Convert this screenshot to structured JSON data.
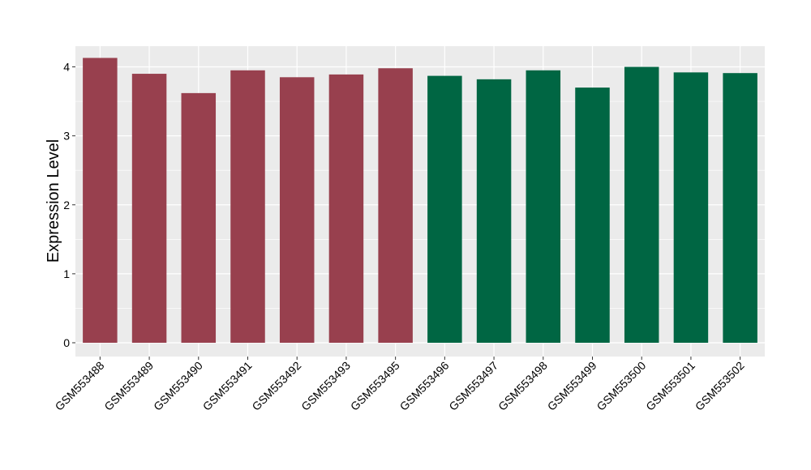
{
  "chart_data": {
    "type": "bar",
    "title": "",
    "xlabel": "",
    "ylabel": "Expression Level",
    "categories": [
      "GSM553488",
      "GSM553489",
      "GSM553490",
      "GSM553491",
      "GSM553492",
      "GSM553493",
      "GSM553495",
      "GSM553496",
      "GSM553497",
      "GSM553498",
      "GSM553499",
      "GSM553500",
      "GSM553501",
      "GSM553502"
    ],
    "values": [
      4.13,
      3.9,
      3.62,
      3.95,
      3.85,
      3.89,
      3.98,
      3.87,
      3.82,
      3.95,
      3.7,
      4.0,
      3.92,
      3.91
    ],
    "groups": [
      "A",
      "A",
      "A",
      "A",
      "A",
      "A",
      "A",
      "B",
      "B",
      "B",
      "B",
      "B",
      "B",
      "B"
    ],
    "group_colors": {
      "A": "#98404E",
      "B": "#006643"
    },
    "ylim": [
      -0.2,
      4.3
    ],
    "yticks": [
      0,
      1,
      2,
      3,
      4
    ],
    "grid": true,
    "legend": "none",
    "panel_background": "#EBEBEB"
  }
}
